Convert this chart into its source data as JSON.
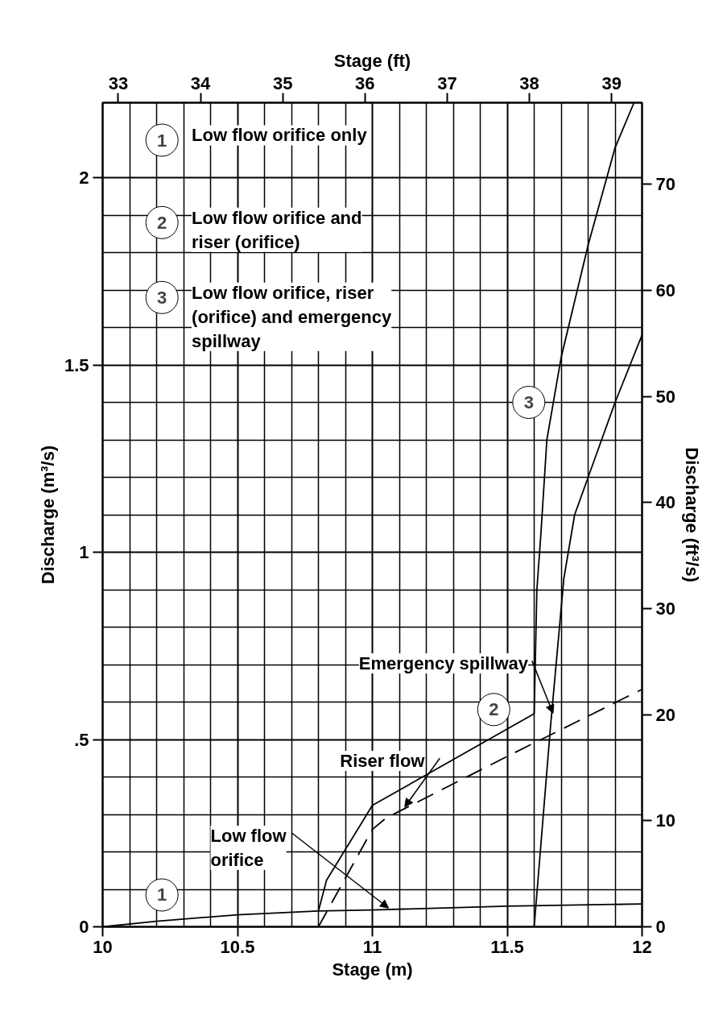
{
  "chart_data": {
    "type": "line",
    "xlabel": "Stage (m)",
    "ylabel": "Discharge (m³/s)",
    "x2label": "Stage (ft)",
    "y2label": "Discharge (ft³/s)",
    "xlim": [
      10,
      12
    ],
    "xticks": [
      10,
      10.5,
      11,
      11.5,
      12
    ],
    "ylim": [
      0,
      2.2
    ],
    "yticks": [
      0,
      {
        "value": 0.5,
        "label": ".5"
      },
      1,
      1.5,
      2
    ],
    "x2lim": [
      32.81,
      39.37
    ],
    "x2ticks": [
      33,
      34,
      35,
      36,
      37,
      38,
      39
    ],
    "y2lim": [
      0,
      77.68
    ],
    "y2ticks": [
      0,
      10,
      20,
      30,
      40,
      50,
      60,
      70
    ],
    "grid": true,
    "series": [
      {
        "color": "#000000",
        "line_style": "solid",
        "x": [
          10,
          10.2,
          10.5,
          10.8,
          11.0,
          11.5,
          12.0
        ],
        "values": [
          0,
          0.015,
          0.032,
          0.042,
          0.045,
          0.055,
          0.061
        ]
      },
      {
        "color": "#000000",
        "line_style": "solid",
        "x": [
          10.8,
          10.83,
          11.0,
          11.6
        ],
        "values": [
          0.042,
          0.124,
          0.324,
          0.569
        ]
      },
      {
        "color": "#000000",
        "line_style": "dashed",
        "x": [
          10.8,
          11.0,
          11.05,
          11.5,
          12.0
        ],
        "values": [
          0,
          0.26,
          0.29,
          0.455,
          0.634
        ]
      },
      {
        "color": "#000000",
        "line_style": "solid",
        "x": [
          11.6,
          11.66,
          11.71,
          11.75,
          11.8,
          11.9,
          12.0
        ],
        "values": [
          0,
          0.53,
          0.93,
          1.1,
          1.2,
          1.4,
          1.58
        ]
      },
      {
        "color": "#000000",
        "line_style": "solid",
        "x": [
          11.6,
          11.61,
          11.625,
          11.647,
          11.7,
          11.8,
          11.9,
          11.97
        ],
        "values": [
          0.569,
          0.9,
          1.05,
          1.3,
          1.52,
          1.82,
          2.08,
          2.2
        ]
      }
    ],
    "annotations": [
      "1 Low flow orifice only",
      "2 Low flow orifice and\nriser (orifice)",
      "3 Low flow orifice, riser\n(orifice) and emergency\nspillway",
      {
        "text": "1",
        "x": 10.22,
        "y": 0.085
      },
      {
        "text": "2",
        "x": 11.45,
        "y": 0.58
      },
      {
        "text": "3",
        "x": 11.58,
        "y": 1.4
      },
      {
        "text": "Low flow\norifice",
        "x": 11.06,
        "y": 0.05
      },
      {
        "text": "Riser flow",
        "x": 11.12,
        "y": 0.32
      },
      {
        "text": "Emergency spillway",
        "x": 11.67,
        "y": 0.57
      }
    ]
  }
}
